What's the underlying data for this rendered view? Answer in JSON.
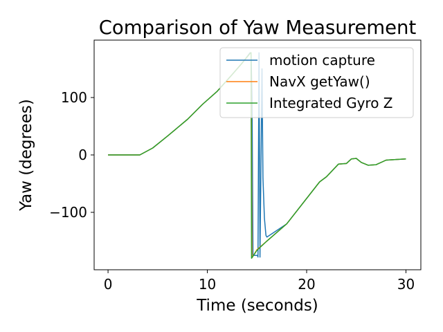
{
  "chart_data": {
    "type": "line",
    "title": "Comparison of Yaw Measurement",
    "xlabel": "Time (seconds)",
    "ylabel": "Yaw (degrees)",
    "xlim": [
      -1.4,
      31.5
    ],
    "ylim": [
      -200,
      200
    ],
    "xticks": [
      0,
      10,
      20,
      30
    ],
    "yticks": [
      -100,
      0,
      100
    ],
    "xtick_labels": [
      "0",
      "10",
      "20",
      "30"
    ],
    "ytick_labels": [
      "−100",
      "0",
      "100"
    ],
    "grid": false,
    "legend_position": "top-right",
    "series": [
      {
        "name": "motion capture",
        "color": "#1f77b4",
        "x": [
          0,
          0.1,
          3.2,
          4.5,
          6.0,
          8.0,
          9.5,
          11.0,
          12.5,
          13.5,
          14.3,
          14.4,
          14.5,
          14.6,
          15.05,
          15.1,
          15.2,
          15.3,
          15.5,
          15.6,
          15.75,
          15.9,
          16.0,
          18.0,
          21.3,
          22.0,
          23.2,
          24.0,
          24.5,
          25.0,
          25.5,
          26.2,
          27.0,
          28.0,
          30.0
        ],
        "y": [
          0,
          0,
          0,
          12,
          33,
          62,
          88,
          111,
          140,
          160,
          178,
          178,
          100,
          -175,
          -175,
          -178,
          178,
          -178,
          150,
          -40,
          -110,
          -140,
          -143,
          -120,
          -47,
          -38,
          -16,
          -15,
          -7,
          -6,
          -13,
          -18,
          -17,
          -9,
          -7
        ]
      },
      {
        "name": "NavX getYaw()",
        "color": "#ff7f0e",
        "x": [
          0,
          0.1,
          3.2,
          4.5,
          6.0,
          8.0,
          9.5,
          11.0,
          12.5,
          13.5,
          14.35,
          14.4,
          14.5,
          15.0,
          16.0,
          18.0,
          21.3,
          22.0,
          23.2,
          24.0,
          24.5,
          25.0,
          25.5,
          26.2,
          27.0,
          28.0,
          30.0
        ],
        "y": [
          0,
          0,
          0,
          12,
          33,
          62,
          88,
          111,
          140,
          160,
          178,
          178,
          -179,
          -165,
          -150,
          -120,
          -47,
          -38,
          -16,
          -15,
          -7,
          -6,
          -13,
          -18,
          -17,
          -9,
          -7
        ]
      },
      {
        "name": "Integrated Gyro Z",
        "color": "#2ca02c",
        "x": [
          0,
          0.1,
          3.2,
          4.5,
          6.0,
          8.0,
          9.5,
          11.0,
          12.5,
          13.5,
          14.35,
          14.4,
          14.45,
          15.0,
          16.0,
          18.0,
          21.3,
          22.0,
          23.2,
          24.0,
          24.5,
          25.0,
          25.5,
          26.2,
          27.0,
          28.0,
          30.0
        ],
        "y": [
          0,
          0,
          0,
          12,
          33,
          62,
          88,
          111,
          140,
          160,
          178,
          178,
          -180,
          -166,
          -150,
          -120,
          -47,
          -38,
          -16,
          -15,
          -7,
          -6,
          -13,
          -18,
          -17,
          -9,
          -7
        ]
      }
    ]
  }
}
